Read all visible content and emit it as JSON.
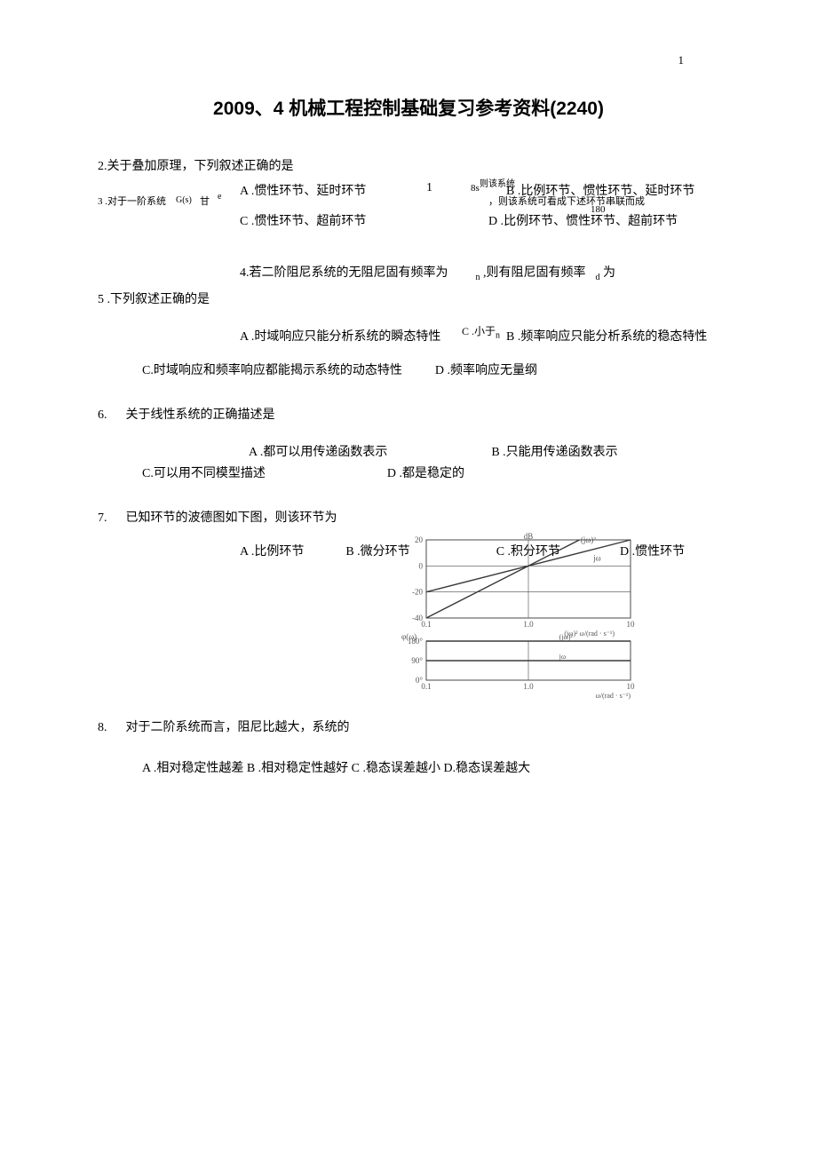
{
  "page_number": "1",
  "title": "2009、4 机械工程控制基础复习参考资料(2240)",
  "q2": {
    "stem": "2.关于叠加原理，下列叙述正确的是"
  },
  "q3": {
    "row1_A": "A .惯性环节、延时环节",
    "row1_mid1": "1",
    "row1_mid2_frag": "8s",
    "row1_B_overlap": "B .比例环节、惯性环节、延时环节",
    "row2_left": "3 .对于一阶系统",
    "row2_gs": "G(s)",
    "row2_eq": "甘",
    "row2_e": "e",
    "row2_right": "，则该系统可看成下述环节串联而成",
    "row3_num": "180",
    "row1_C": "C .惯性环节、超前环节",
    "row1_D": "D .比例环节、惯性环节、超前环节"
  },
  "q4": {
    "stem": "4.若二阶阻尼系统的无阻尼固有频率为",
    "mid": "n",
    "tail": ",则有阻尼固有频率",
    "sub": "d",
    "tail2": "为"
  },
  "q5": {
    "stem": "5 .下列叙述正确的是",
    "A": "A .时域响应只能分析系统的瞬态特性",
    "C_small": "C .小于",
    "n": "n",
    "B": "B .频率响应只能分析系统的稳态特性",
    "C2": "C.时域响应和频率响应都能揭示系统的动态特性",
    "D": "D .频率响应无量纲"
  },
  "q6": {
    "num": "6.",
    "stem": "关于线性系统的正确描述是",
    "A": "A .都可以用传递函数表示",
    "B": "B .只能用传递函数表示",
    "C": "C.可以用不同模型描述",
    "D": "D .都是稳定的"
  },
  "q7": {
    "num": "7.",
    "stem": "已知环节的波德图如下图，则该环节为",
    "A": "A .比例环节",
    "B": "B .微分环节",
    "C": "C .积分环节",
    "D": "D .惯性环节",
    "bode": {
      "mag_ylabel": "dB",
      "mag_yticks": [
        "20",
        "0",
        "-20",
        "-40"
      ],
      "mag_xticks": [
        "0.1",
        "1.0",
        "10"
      ],
      "mag_xlabel": "ω/(rad · s⁻¹)",
      "mag_annot1": "(jω)²",
      "mag_annot2": "jω",
      "phase_ylabel": "φ(ω)",
      "phase_yticks": [
        "180°",
        "90°",
        "0°"
      ],
      "phase_xticks": [
        "0.1",
        "1.0",
        "10"
      ],
      "phase_xlabel": "ω/(rad · s⁻¹)",
      "phase_annot1": "(jω)²",
      "phase_annot2": "jω",
      "colors": {
        "axis": "#4a4a4a",
        "line": "#3a3a3a",
        "text": "#555555",
        "bg": "#ffffff"
      }
    }
  },
  "q8": {
    "num": "8.",
    "stem": "对于二阶系统而言，阻尼比越大，系统的",
    "opts": "A .相对稳定性越差  B .相对稳定性越好  C .稳态误差越小  D.稳态误差越大"
  }
}
